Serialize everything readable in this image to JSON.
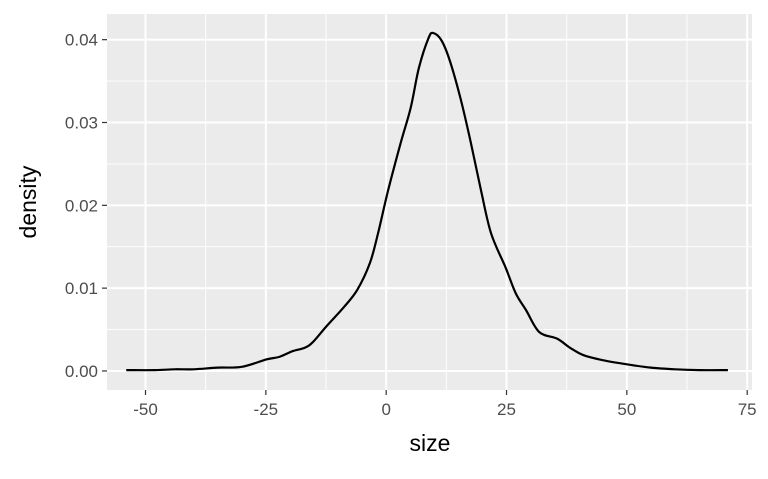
{
  "chart_data": {
    "type": "line",
    "title": "",
    "xlabel": "size",
    "ylabel": "density",
    "xlim": [
      -58,
      76
    ],
    "ylim": [
      -0.0023,
      0.0431
    ],
    "x_ticks": [
      -50,
      -25,
      0,
      25,
      50,
      75
    ],
    "x_tick_labels": [
      "-50",
      "-25",
      "0",
      "25",
      "50",
      "75"
    ],
    "y_ticks": [
      0,
      0.01,
      0.02,
      0.03,
      0.04
    ],
    "y_tick_labels": [
      "0.00",
      "0.01",
      "0.02",
      "0.03",
      "0.04"
    ],
    "grid": true,
    "colors": {
      "panel": "#ebebeb",
      "grid": "#ffffff",
      "line": "#000000",
      "tick_text": "#4d4d4d"
    },
    "series": [
      {
        "x": [
          -54,
          -48,
          -44,
          -40,
          -35,
          -30,
          -24.8,
          -22.2,
          -19.4,
          -16.9,
          -15.2,
          -12.4,
          -8.8,
          -6.0,
          -3.4,
          -1.7,
          0.4,
          3.0,
          5.1,
          6.8,
          8.8,
          9.8,
          11.5,
          13.2,
          15.4,
          17.5,
          19.7,
          21.8,
          24.8,
          26.9,
          29.1,
          31.8,
          35.5,
          38.2,
          41,
          45,
          50,
          55,
          60,
          65,
          71
        ],
        "y": [
          0.0001,
          0.0001,
          0.0002,
          0.0002,
          0.0004,
          0.0005,
          0.0014,
          0.0017,
          0.0024,
          0.0028,
          0.0035,
          0.0054,
          0.0077,
          0.0098,
          0.013,
          0.0166,
          0.0218,
          0.0275,
          0.0318,
          0.0366,
          0.0402,
          0.0408,
          0.0399,
          0.0375,
          0.033,
          0.0278,
          0.0218,
          0.0166,
          0.0125,
          0.0094,
          0.0073,
          0.0047,
          0.0039,
          0.0028,
          0.0019,
          0.0013,
          0.0008,
          0.0004,
          0.0002,
          0.0001,
          0.0001
        ]
      }
    ]
  }
}
